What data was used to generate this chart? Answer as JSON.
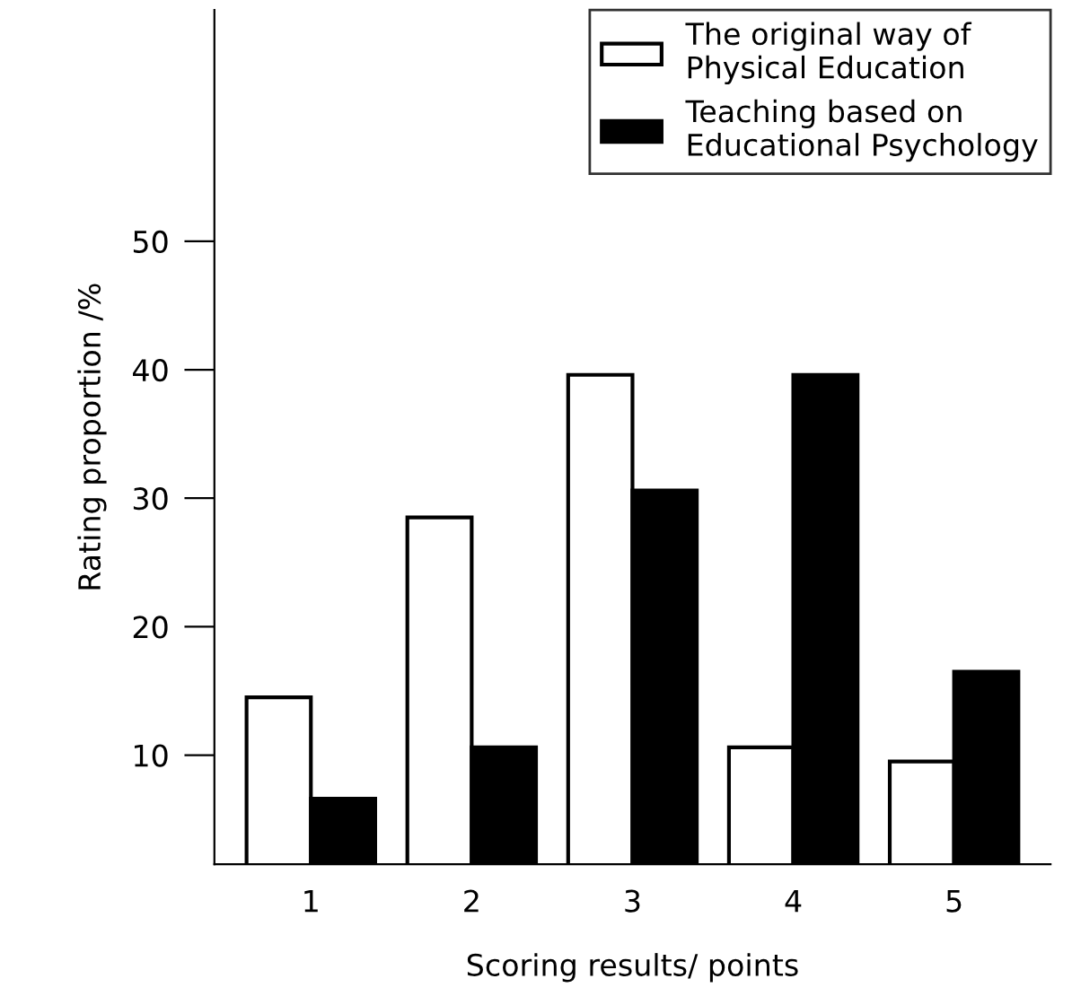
{
  "chart_data": {
    "type": "bar",
    "xlabel": "Scoring results/ points",
    "ylabel": "Rating proportion /%",
    "categories": [
      "1",
      "2",
      "3",
      "4",
      "5"
    ],
    "series": [
      {
        "name": "The original way of\nPhysical Education",
        "color": "#ffffff",
        "values": [
          14.5,
          28.5,
          39.6,
          10.6,
          9.5
        ]
      },
      {
        "name": "Teaching based on\nEducational Psychology",
        "color": "#000000",
        "values": [
          6.6,
          10.6,
          30.6,
          39.6,
          16.5
        ]
      }
    ],
    "ylim": [
      1.5,
      68
    ],
    "yticks": [
      10,
      20,
      30,
      40,
      50
    ],
    "grid": false,
    "legend": "top right"
  }
}
